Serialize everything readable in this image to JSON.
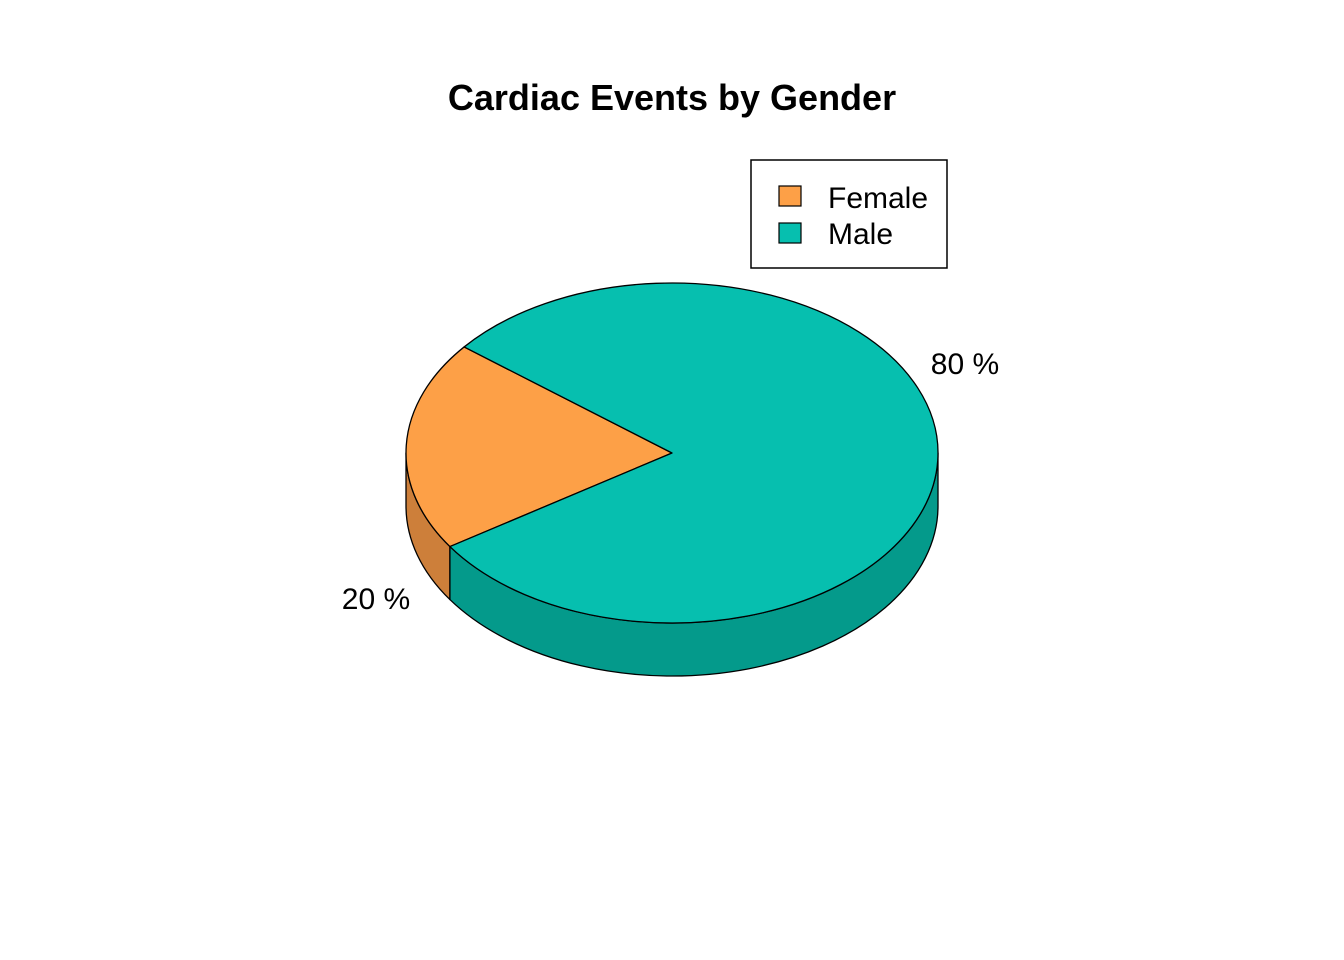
{
  "chart_data": {
    "type": "pie",
    "style": "3d",
    "title": "Cardiac Events by Gender",
    "categories": [
      "Female",
      "Male"
    ],
    "values": [
      20,
      80
    ],
    "labels": [
      "20 %",
      "80 %"
    ],
    "colors": {
      "Female": "#FDA047",
      "Male": "#06BFAF"
    },
    "side_colors": {
      "Female": "#CD7F3A",
      "Male": "#049A8B"
    },
    "legend": {
      "position": "top-right",
      "entries": [
        "Female",
        "Male"
      ]
    }
  }
}
